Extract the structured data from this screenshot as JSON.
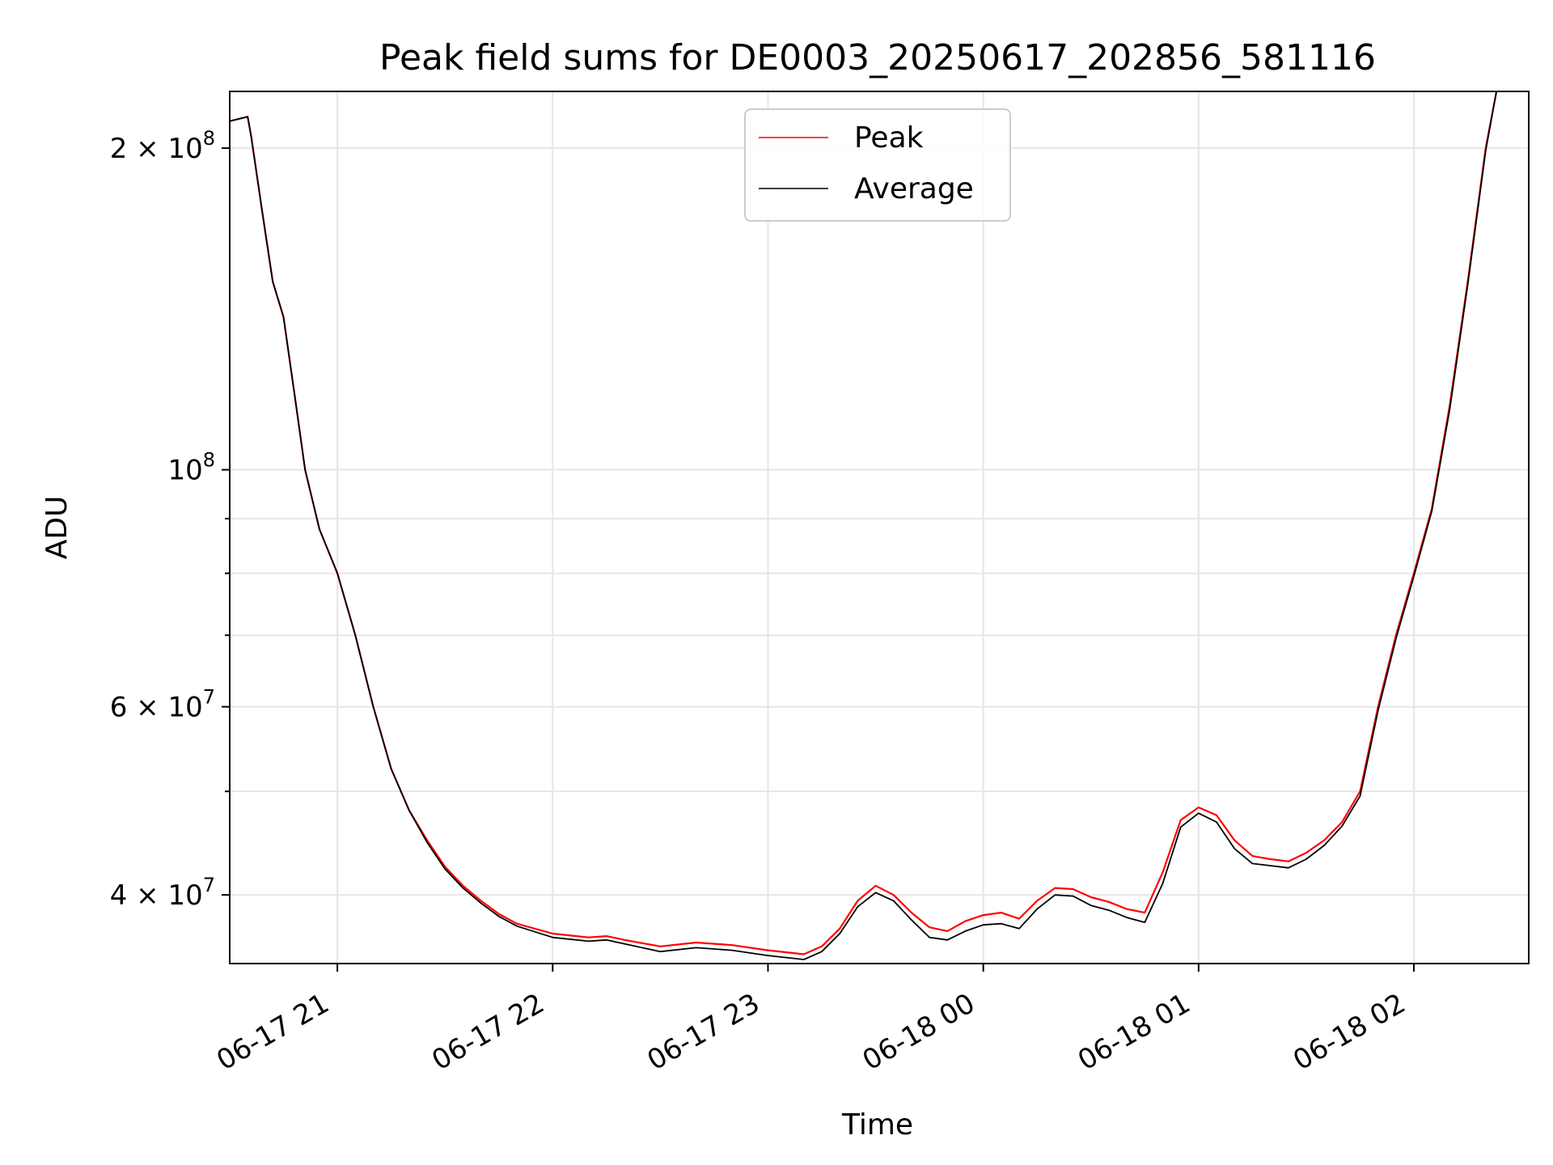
{
  "chart_data": {
    "type": "line",
    "title": "Peak field sums for DE0003_20250617_202856_581116",
    "xlabel": "Time",
    "ylabel": "ADU",
    "yscale": "log",
    "grid": true,
    "legend_position": "top-center",
    "xlim": [
      "2025-06-17 20:30",
      "2025-06-18 02:32"
    ],
    "ylim": [
      34500000,
      226000000
    ],
    "x_ticks": [
      {
        "value": "2025-06-17 21:00",
        "label": "06-17 21"
      },
      {
        "value": "2025-06-17 22:00",
        "label": "06-17 22"
      },
      {
        "value": "2025-06-17 23:00",
        "label": "06-17 23"
      },
      {
        "value": "2025-06-18 00:00",
        "label": "06-18 00"
      },
      {
        "value": "2025-06-18 01:00",
        "label": "06-18 01"
      },
      {
        "value": "2025-06-18 02:00",
        "label": "06-18 02"
      }
    ],
    "y_major_ticks": [
      {
        "value": 40000000,
        "mantissa": "4 × 10",
        "exp": "7"
      },
      {
        "value": 60000000,
        "mantissa": "6 × 10",
        "exp": "7"
      },
      {
        "value": 100000000,
        "mantissa": "10",
        "exp": "8"
      },
      {
        "value": 200000000,
        "mantissa": "2 × 10",
        "exp": "8"
      }
    ],
    "y_minor_ticks": [
      50000000,
      70000000,
      80000000,
      90000000
    ],
    "series": [
      {
        "name": "Peak",
        "color": "#ff0000",
        "points": [
          [
            "2025-06-17 20:30",
            212000000
          ],
          [
            "2025-06-17 20:35",
            214000000
          ],
          [
            "2025-06-17 20:36",
            205000000
          ],
          [
            "2025-06-17 20:39",
            175000000
          ],
          [
            "2025-06-17 20:42",
            150000000
          ],
          [
            "2025-06-17 20:45",
            139000000
          ],
          [
            "2025-06-17 20:48",
            118000000
          ],
          [
            "2025-06-17 20:51",
            100000000
          ],
          [
            "2025-06-17 20:55",
            88000000
          ],
          [
            "2025-06-17 21:00",
            80000000
          ],
          [
            "2025-06-17 21:05",
            70000000
          ],
          [
            "2025-06-17 21:10",
            60000000
          ],
          [
            "2025-06-17 21:15",
            52500000
          ],
          [
            "2025-06-17 21:20",
            48000000
          ],
          [
            "2025-06-17 21:25",
            45000000
          ],
          [
            "2025-06-17 21:30",
            42500000
          ],
          [
            "2025-06-17 21:35",
            40800000
          ],
          [
            "2025-06-17 21:40",
            39500000
          ],
          [
            "2025-06-17 21:45",
            38400000
          ],
          [
            "2025-06-17 21:50",
            37600000
          ],
          [
            "2025-06-17 22:00",
            36800000
          ],
          [
            "2025-06-17 22:10",
            36500000
          ],
          [
            "2025-06-17 22:15",
            36600000
          ],
          [
            "2025-06-17 22:20",
            36300000
          ],
          [
            "2025-06-17 22:30",
            35800000
          ],
          [
            "2025-06-17 22:40",
            36100000
          ],
          [
            "2025-06-17 22:50",
            35900000
          ],
          [
            "2025-06-17 23:00",
            35500000
          ],
          [
            "2025-06-17 23:10",
            35200000
          ],
          [
            "2025-06-17 23:15",
            35800000
          ],
          [
            "2025-06-17 23:20",
            37200000
          ],
          [
            "2025-06-17 23:25",
            39500000
          ],
          [
            "2025-06-17 23:30",
            40800000
          ],
          [
            "2025-06-17 23:35",
            40000000
          ],
          [
            "2025-06-17 23:40",
            38500000
          ],
          [
            "2025-06-17 23:45",
            37300000
          ],
          [
            "2025-06-17 23:50",
            37000000
          ],
          [
            "2025-06-17 23:55",
            37800000
          ],
          [
            "2025-06-18 00:00",
            38300000
          ],
          [
            "2025-06-18 00:05",
            38500000
          ],
          [
            "2025-06-18 00:10",
            38000000
          ],
          [
            "2025-06-18 00:15",
            39500000
          ],
          [
            "2025-06-18 00:20",
            40600000
          ],
          [
            "2025-06-18 00:25",
            40500000
          ],
          [
            "2025-06-18 00:30",
            39800000
          ],
          [
            "2025-06-18 00:35",
            39400000
          ],
          [
            "2025-06-18 00:40",
            38800000
          ],
          [
            "2025-06-18 00:45",
            38500000
          ],
          [
            "2025-06-18 00:50",
            42000000
          ],
          [
            "2025-06-18 00:55",
            47000000
          ],
          [
            "2025-06-18 01:00",
            48300000
          ],
          [
            "2025-06-18 01:05",
            47500000
          ],
          [
            "2025-06-18 01:10",
            45000000
          ],
          [
            "2025-06-18 01:15",
            43500000
          ],
          [
            "2025-06-18 01:20",
            43200000
          ],
          [
            "2025-06-18 01:25",
            43000000
          ],
          [
            "2025-06-18 01:30",
            43800000
          ],
          [
            "2025-06-18 01:35",
            45000000
          ],
          [
            "2025-06-18 01:40",
            46800000
          ],
          [
            "2025-06-18 01:45",
            50000000
          ],
          [
            "2025-06-18 01:50",
            60000000
          ],
          [
            "2025-06-18 01:55",
            70000000
          ],
          [
            "2025-06-18 02:00",
            80000000
          ],
          [
            "2025-06-18 02:05",
            92000000
          ],
          [
            "2025-06-18 02:10",
            115000000
          ],
          [
            "2025-06-18 02:15",
            150000000
          ],
          [
            "2025-06-18 02:20",
            200000000
          ],
          [
            "2025-06-18 02:23",
            226000000
          ]
        ]
      },
      {
        "name": "Average",
        "color": "#000000",
        "points": [
          [
            "2025-06-17 20:30",
            212000000
          ],
          [
            "2025-06-17 20:35",
            214000000
          ],
          [
            "2025-06-17 20:36",
            205000000
          ],
          [
            "2025-06-17 20:39",
            175000000
          ],
          [
            "2025-06-17 20:42",
            150000000
          ],
          [
            "2025-06-17 20:45",
            139000000
          ],
          [
            "2025-06-17 20:48",
            118000000
          ],
          [
            "2025-06-17 20:51",
            100000000
          ],
          [
            "2025-06-17 20:55",
            88000000
          ],
          [
            "2025-06-17 21:00",
            80000000
          ],
          [
            "2025-06-17 21:05",
            70000000
          ],
          [
            "2025-06-17 21:10",
            60000000
          ],
          [
            "2025-06-17 21:15",
            52500000
          ],
          [
            "2025-06-17 21:20",
            48000000
          ],
          [
            "2025-06-17 21:25",
            44800000
          ],
          [
            "2025-06-17 21:30",
            42300000
          ],
          [
            "2025-06-17 21:35",
            40600000
          ],
          [
            "2025-06-17 21:40",
            39300000
          ],
          [
            "2025-06-17 21:45",
            38200000
          ],
          [
            "2025-06-17 21:50",
            37400000
          ],
          [
            "2025-06-17 22:00",
            36500000
          ],
          [
            "2025-06-17 22:10",
            36200000
          ],
          [
            "2025-06-17 22:15",
            36300000
          ],
          [
            "2025-06-17 22:20",
            36000000
          ],
          [
            "2025-06-17 22:30",
            35400000
          ],
          [
            "2025-06-17 22:40",
            35700000
          ],
          [
            "2025-06-17 22:50",
            35500000
          ],
          [
            "2025-06-17 23:00",
            35100000
          ],
          [
            "2025-06-17 23:10",
            34800000
          ],
          [
            "2025-06-17 23:15",
            35400000
          ],
          [
            "2025-06-17 23:20",
            36800000
          ],
          [
            "2025-06-17 23:25",
            39000000
          ],
          [
            "2025-06-17 23:30",
            40200000
          ],
          [
            "2025-06-17 23:35",
            39500000
          ],
          [
            "2025-06-17 23:40",
            37900000
          ],
          [
            "2025-06-17 23:45",
            36500000
          ],
          [
            "2025-06-17 23:50",
            36300000
          ],
          [
            "2025-06-17 23:55",
            37000000
          ],
          [
            "2025-06-18 00:00",
            37500000
          ],
          [
            "2025-06-18 00:05",
            37600000
          ],
          [
            "2025-06-18 00:10",
            37200000
          ],
          [
            "2025-06-18 00:15",
            38800000
          ],
          [
            "2025-06-18 00:20",
            40000000
          ],
          [
            "2025-06-18 00:25",
            39900000
          ],
          [
            "2025-06-18 00:30",
            39100000
          ],
          [
            "2025-06-18 00:35",
            38700000
          ],
          [
            "2025-06-18 00:40",
            38100000
          ],
          [
            "2025-06-18 00:45",
            37700000
          ],
          [
            "2025-06-18 00:50",
            41000000
          ],
          [
            "2025-06-18 00:55",
            46300000
          ],
          [
            "2025-06-18 01:00",
            47700000
          ],
          [
            "2025-06-18 01:05",
            46800000
          ],
          [
            "2025-06-18 01:10",
            44200000
          ],
          [
            "2025-06-18 01:15",
            42800000
          ],
          [
            "2025-06-18 01:20",
            42600000
          ],
          [
            "2025-06-18 01:25",
            42400000
          ],
          [
            "2025-06-18 01:30",
            43200000
          ],
          [
            "2025-06-18 01:35",
            44500000
          ],
          [
            "2025-06-18 01:40",
            46400000
          ],
          [
            "2025-06-18 01:45",
            49500000
          ],
          [
            "2025-06-18 01:50",
            59500000
          ],
          [
            "2025-06-18 01:55",
            69500000
          ],
          [
            "2025-06-18 02:00",
            79500000
          ],
          [
            "2025-06-18 02:05",
            91500000
          ],
          [
            "2025-06-18 02:10",
            114000000
          ],
          [
            "2025-06-18 02:15",
            149000000
          ],
          [
            "2025-06-18 02:20",
            199000000
          ],
          [
            "2025-06-18 02:23",
            226000000
          ]
        ]
      }
    ]
  }
}
